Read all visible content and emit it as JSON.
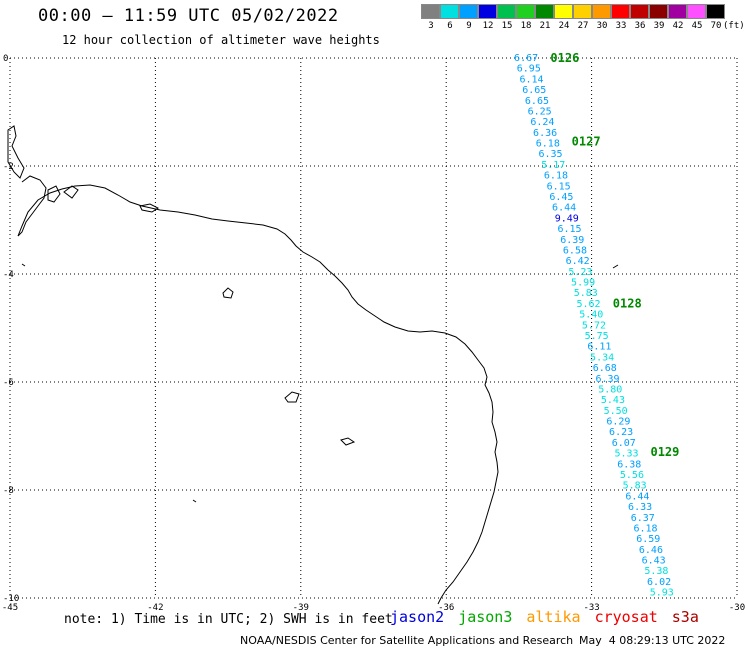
{
  "header": {
    "title": "00:00 – 11:59 UTC 05/02/2022",
    "subtitle": "12 hour collection of altimeter wave heights"
  },
  "legend": {
    "unit": "(ft)",
    "bins": [
      {
        "label": "3",
        "color": "#808080"
      },
      {
        "label": "6",
        "color": "#00e0e0"
      },
      {
        "label": "9",
        "color": "#00a0ff"
      },
      {
        "label": "12",
        "color": "#0000e0"
      },
      {
        "label": "15",
        "color": "#00c050"
      },
      {
        "label": "18",
        "color": "#20d020"
      },
      {
        "label": "21",
        "color": "#008800"
      },
      {
        "label": "24",
        "color": "#ffff00"
      },
      {
        "label": "27",
        "color": "#ffd000"
      },
      {
        "label": "30",
        "color": "#ff9900"
      },
      {
        "label": "33",
        "color": "#ff0000"
      },
      {
        "label": "36",
        "color": "#c00000"
      },
      {
        "label": "39",
        "color": "#8a0000"
      },
      {
        "label": "42",
        "color": "#a000a0"
      },
      {
        "label": "45",
        "color": "#ff50ff"
      },
      {
        "label": "70",
        "color": "#000000"
      }
    ]
  },
  "axes": {
    "lon_labels": [
      "-45",
      "-42",
      "-39",
      "-36",
      "-33",
      "-30"
    ],
    "lat_labels": [
      "0",
      "-2",
      "-4",
      "-6",
      "-8",
      "-10"
    ]
  },
  "passes": [
    {
      "label": "0126",
      "lat": 0.0
    },
    {
      "label": "0127",
      "lat": -1.55
    },
    {
      "label": "0128",
      "lat": -4.55
    },
    {
      "label": "0129",
      "lat": -7.3
    }
  ],
  "observations": [
    "6.67",
    "6.95",
    "6.14",
    "6.65",
    "6.65",
    "6.25",
    "6.24",
    "6.36",
    "6.18",
    "6.35",
    "5.17",
    "6.18",
    "6.15",
    "6.45",
    "6.44",
    "9.49",
    "6.15",
    "6.39",
    "6.58",
    "6.42",
    "5.23",
    "5.99",
    "5.83",
    "5.62",
    "5.40",
    "5.72",
    "5.75",
    "6.11",
    "5.34",
    "6.68",
    "6.39",
    "5.80",
    "5.43",
    "5.50",
    "6.29",
    "6.23",
    "6.07",
    "5.33",
    "6.38",
    "5.56",
    "5.83",
    "6.44",
    "6.33",
    "6.37",
    "6.18",
    "6.59",
    "6.46",
    "6.43",
    "5.38",
    "6.02",
    "5.93"
  ],
  "footer": {
    "note": "note: 1) Time is in UTC; 2) SWH is in feet",
    "satellites": [
      {
        "name": "jason2",
        "color": "#0000dd"
      },
      {
        "name": "jason3",
        "color": "#00aa00"
      },
      {
        "name": "altika",
        "color": "#ff9900"
      },
      {
        "name": "cryosat",
        "color": "#ee0000"
      },
      {
        "name": "s3a",
        "color": "#aa0000"
      }
    ],
    "credit": "NOAA/NESDIS Center for Satellite Applications and Research",
    "timestamp": "May  4 08:29:13 UTC 2022"
  }
}
